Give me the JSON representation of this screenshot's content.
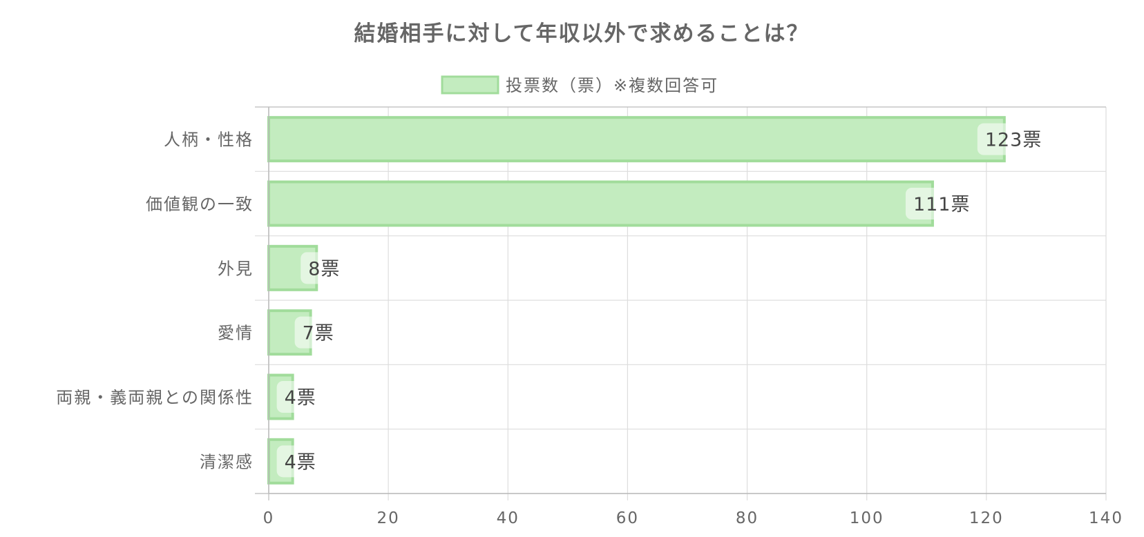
{
  "chart_data": {
    "type": "bar",
    "orientation": "horizontal",
    "title": "結婚相手に対して年収以外で求めることは？",
    "categories": [
      "人柄・性格",
      "価値観の一致",
      "外見",
      "愛情",
      "両親・義両親との関係性",
      "清潔感"
    ],
    "series": [
      {
        "name": "投票数（票）※複数回答可",
        "values": [
          123,
          111,
          8,
          7,
          4,
          4
        ],
        "fill": "#c3ecbf",
        "stroke": "#a1dc9b"
      }
    ],
    "value_suffix": "票",
    "xlim": [
      0,
      140
    ],
    "xticks": [
      0,
      20,
      40,
      60,
      80,
      100,
      120,
      140
    ],
    "grid": true,
    "legend_position": "top-center",
    "colors": {
      "text": "#666666",
      "value_text": "#444444",
      "grid": "#dddddd",
      "axis": "#bbbbbb"
    }
  }
}
